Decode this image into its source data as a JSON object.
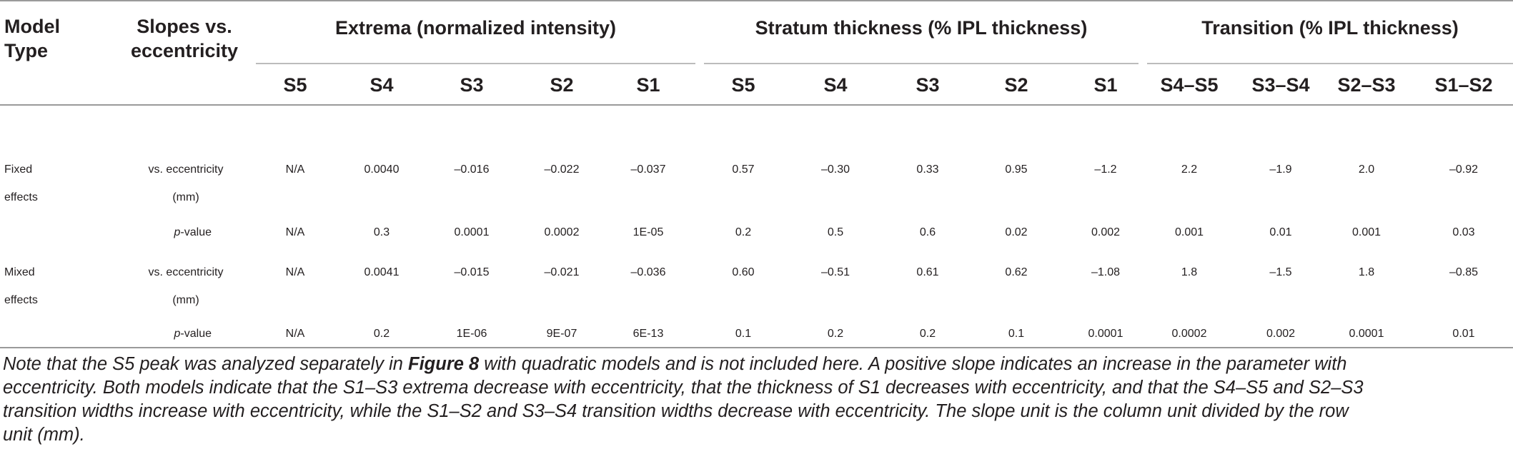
{
  "header": {
    "model_type": [
      "Model",
      "Type"
    ],
    "slopes": [
      "Slopes vs.",
      "eccentricity"
    ],
    "groups": [
      "Extrema (normalized intensity)",
      "Stratum thickness (% IPL thickness)",
      "Transition (% IPL thickness)"
    ],
    "columns": [
      "S5",
      "S4",
      "S3",
      "S2",
      "S1",
      "S5",
      "S4",
      "S3",
      "S2",
      "S1",
      "S4–S5",
      "S3–S4",
      "S2–S3",
      "S1–S2"
    ]
  },
  "rows": [
    {
      "model": [
        "Fixed",
        "effects"
      ],
      "label": [
        "vs. eccentricity",
        "(mm)"
      ],
      "values": [
        "N/A",
        "0.0040",
        "–0.016",
        "–0.022",
        "–0.037",
        "0.57",
        "–0.30",
        "0.33",
        "0.95",
        "–1.2",
        "2.2",
        "–1.9",
        "2.0",
        "–0.92"
      ]
    },
    {
      "model": [
        "",
        ""
      ],
      "label_italic": "p",
      "label_rest": "-value",
      "values": [
        "N/A",
        "0.3",
        "0.0001",
        "0.0002",
        "1E-05",
        "0.2",
        "0.5",
        "0.6",
        "0.02",
        "0.002",
        "0.001",
        "0.01",
        "0.001",
        "0.03"
      ]
    },
    {
      "model": [
        "Mixed",
        "effects"
      ],
      "label": [
        "vs. eccentricity",
        "(mm)"
      ],
      "values": [
        "N/A",
        "0.0041",
        "–0.015",
        "–0.021",
        "–0.036",
        "0.60",
        "–0.51",
        "0.61",
        "0.62",
        "–1.08",
        "1.8",
        "–1.5",
        "1.8",
        "–0.85"
      ]
    },
    {
      "model": [
        "",
        ""
      ],
      "label_italic": "p",
      "label_rest": "-value",
      "values": [
        "N/A",
        "0.2",
        "1E-06",
        "9E-07",
        "6E-13",
        "0.1",
        "0.2",
        "0.2",
        "0.1",
        "0.0001",
        "0.0002",
        "0.002",
        "0.0001",
        "0.01"
      ]
    }
  ],
  "note": {
    "lines": [
      [
        "Note that the S5 peak was analyzed separately in ",
        "Figure 8",
        " with quadratic models and is not included here. A positive slope indicates an increase in the parameter with"
      ],
      [
        "eccentricity. Both models indicate that the S1–S3 extrema decrease with eccentricity, that the thickness of S1 decreases with eccentricity, and that the S4–S5 and S2–S3"
      ],
      [
        "transition widths increase with eccentricity, while the S1–S2 and S3–S4 transition widths decrease with eccentricity. The slope unit is the column unit divided by the row"
      ],
      [
        "unit (mm)."
      ]
    ]
  }
}
